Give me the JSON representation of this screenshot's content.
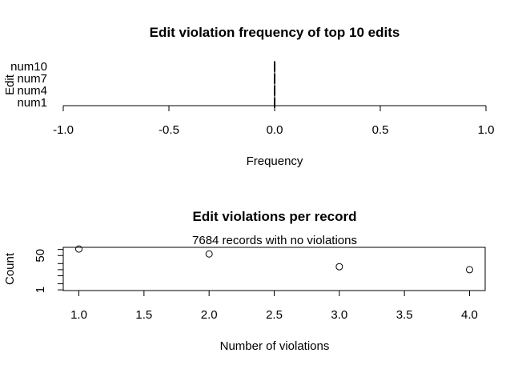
{
  "chart_data": [
    {
      "type": "bar",
      "orientation": "horizontal",
      "title": "Edit violation frequency of top 10 edits",
      "xlabel": "Frequency",
      "ylabel": "Edit",
      "categories": [
        "num1",
        "num4",
        "num7",
        "num10"
      ],
      "ytick_labels": [
        "num1",
        "num4",
        "num7",
        "num10"
      ],
      "values": [
        0,
        0,
        0,
        0
      ],
      "xlim": [
        -1.0,
        1.0
      ],
      "xticks": [
        "-1.0",
        "-0.5",
        "0.0",
        "0.5",
        "1.0"
      ],
      "grid": false
    },
    {
      "type": "scatter",
      "title": "Edit violations per record",
      "subtitle": "7684 records with no violations",
      "xlabel": "Number of violations",
      "ylabel": "Count",
      "log_y": true,
      "x": [
        1.0,
        2.0,
        3.0,
        4.0
      ],
      "y": [
        105,
        60,
        14,
        10
      ],
      "xlim": [
        0.88,
        4.12
      ],
      "ylim": [
        1,
        120
      ],
      "xticks": [
        "1.0",
        "1.5",
        "2.0",
        "2.5",
        "3.0",
        "3.5",
        "4.0"
      ],
      "yticks": [
        "1",
        "50"
      ],
      "grid": false
    }
  ]
}
